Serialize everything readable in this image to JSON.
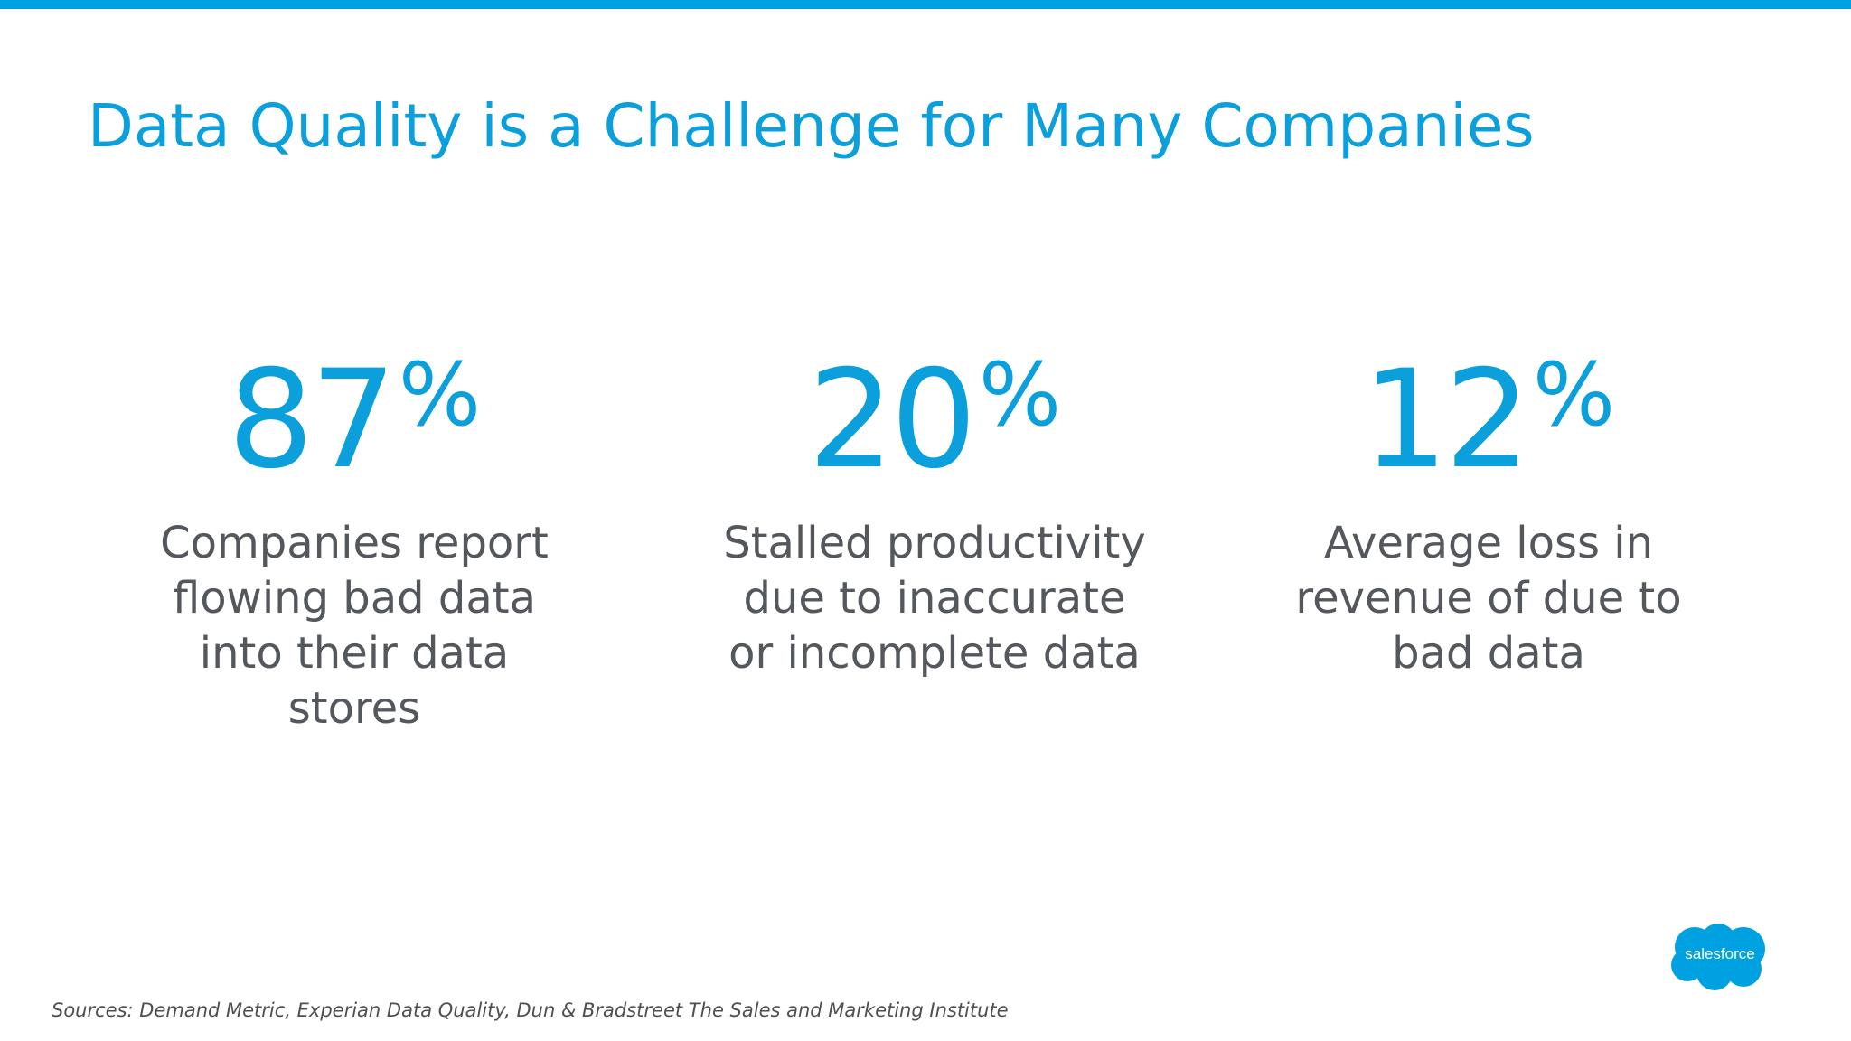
{
  "slide": {
    "title": "Data Quality is a Challenge for Many Companies",
    "accent_color": "#00a1e0",
    "stats": [
      {
        "value": "87",
        "unit": "%",
        "description": "Companies report flowing bad data into their data stores"
      },
      {
        "value": "20",
        "unit": "%",
        "description": "Stalled productivity due to inaccurate or incomplete data"
      },
      {
        "value": "12",
        "unit": "%",
        "description": "Average loss in revenue of due to bad data"
      }
    ],
    "sources": "Sources: Demand Metric, Experian Data Quality, Dun & Bradstreet The Sales and Marketing Institute",
    "logo": {
      "text": "salesforce",
      "icon": "salesforce-cloud-icon",
      "color": "#00a1e0"
    }
  }
}
